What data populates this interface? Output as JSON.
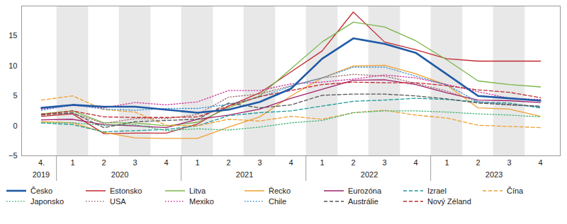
{
  "chart_data": {
    "type": "line",
    "categories": [
      "4.",
      "1",
      "2",
      "3",
      "4",
      "1",
      "2",
      "3",
      "4",
      "1",
      "2",
      "3",
      "4",
      "1",
      "2",
      "3",
      "4"
    ],
    "year_groups": [
      {
        "label": "2019",
        "count": 1
      },
      {
        "label": "2020",
        "count": 4
      },
      {
        "label": "2021",
        "count": 4
      },
      {
        "label": "2022",
        "count": 4
      },
      {
        "label": "2023",
        "count": 4
      }
    ],
    "ylim": [
      -5,
      20
    ],
    "yticks": [
      -5,
      0,
      5,
      10,
      15
    ],
    "legend": "bottom",
    "series": [
      {
        "name": "Česko",
        "color": "#1f5aa6",
        "line_style": "solid",
        "values": [
          3.0,
          3.5,
          3.2,
          3.2,
          2.7,
          2.2,
          2.7,
          4.0,
          6.2,
          11.2,
          14.6,
          13.7,
          12.2,
          8.6,
          5.0,
          4.6,
          4.2
        ]
      },
      {
        "name": "Estonsko",
        "color": "#c0282d",
        "line_style": "solid",
        "values": [
          1.6,
          2.0,
          -1.3,
          -1.2,
          -1.2,
          0.3,
          3.3,
          5.5,
          9.0,
          12.5,
          19.0,
          14.0,
          12.7,
          11.2,
          10.8,
          10.8,
          10.8
        ]
      },
      {
        "name": "Litva",
        "color": "#7ab648",
        "line_style": "solid",
        "values": [
          2.0,
          2.5,
          0.5,
          0.5,
          0.0,
          0.6,
          3.0,
          5.0,
          9.5,
          14.0,
          17.3,
          16.5,
          14.2,
          11.0,
          7.5,
          6.9,
          6.5
        ]
      },
      {
        "name": "Řecko",
        "color": "#f0a030",
        "line_style": "solid",
        "values": [
          0.7,
          0.5,
          -1.1,
          -2.0,
          -2.1,
          -2.1,
          -0.2,
          1.5,
          5.0,
          8.0,
          10.0,
          10.1,
          8.7,
          6.8,
          3.0,
          2.8,
          1.6
        ]
      },
      {
        "name": "Eurozóna",
        "color": "#a0206e",
        "line_style": "solid",
        "values": [
          1.0,
          1.1,
          0.2,
          0.0,
          -0.3,
          1.1,
          1.8,
          2.8,
          4.6,
          6.1,
          7.6,
          7.7,
          6.9,
          5.5,
          4.3,
          4.2,
          3.9
        ]
      },
      {
        "name": "Izrael",
        "color": "#1a9a9a",
        "line_style": "dashed",
        "values": [
          0.5,
          0.2,
          -1.0,
          -0.8,
          -0.6,
          0.0,
          1.7,
          2.2,
          2.5,
          3.3,
          4.1,
          4.3,
          4.6,
          4.4,
          4.0,
          3.8,
          3.0
        ]
      },
      {
        "name": "Čína",
        "color": "#f0a030",
        "line_style": "dashed",
        "values": [
          4.3,
          5.0,
          2.7,
          2.3,
          0.1,
          0.0,
          1.1,
          0.8,
          1.6,
          1.1,
          2.2,
          2.6,
          1.8,
          1.3,
          0.1,
          -0.1,
          -0.3
        ]
      },
      {
        "name": "Japonsko",
        "color": "#3cb371",
        "line_style": "dotted",
        "values": [
          0.5,
          0.5,
          0.1,
          0.2,
          -0.8,
          -0.5,
          -0.7,
          -0.2,
          0.5,
          0.9,
          2.2,
          2.5,
          2.5,
          2.3,
          2.0,
          1.8,
          1.5
        ]
      },
      {
        "name": "USA",
        "color": "#a07070",
        "line_style": "dotted",
        "values": [
          2.0,
          2.1,
          0.4,
          1.2,
          1.2,
          1.9,
          4.8,
          5.3,
          6.7,
          8.0,
          8.6,
          8.3,
          7.1,
          5.8,
          4.0,
          3.6,
          3.2
        ]
      },
      {
        "name": "Mexiko",
        "color": "#d0359e",
        "line_style": "dotted",
        "values": [
          2.8,
          3.4,
          3.0,
          3.9,
          3.5,
          4.0,
          5.9,
          5.9,
          7.0,
          7.3,
          7.8,
          8.5,
          8.0,
          6.9,
          5.7,
          4.6,
          4.4
        ]
      },
      {
        "name": "Chile",
        "color": "#3a8fd0",
        "line_style": "dotted",
        "values": [
          2.6,
          3.5,
          2.8,
          2.6,
          2.9,
          2.9,
          3.6,
          4.8,
          6.6,
          8.0,
          9.8,
          9.8,
          8.3,
          6.8,
          4.0,
          3.5,
          3.2
        ]
      },
      {
        "name": "Austrálie",
        "color": "#555555",
        "line_style": "dashed",
        "values": [
          1.8,
          2.2,
          -0.3,
          0.7,
          0.9,
          1.1,
          3.8,
          3.0,
          3.5,
          5.1,
          5.3,
          5.3,
          5.0,
          4.5,
          3.8,
          3.5,
          3.3
        ]
      },
      {
        "name": "Nový Zéland",
        "color": "#c0282d",
        "line_style": "dashed",
        "values": [
          1.9,
          2.5,
          1.5,
          1.4,
          1.4,
          1.5,
          3.3,
          4.9,
          5.9,
          6.9,
          7.3,
          7.2,
          7.2,
          6.7,
          6.0,
          5.6,
          4.7
        ]
      }
    ]
  }
}
